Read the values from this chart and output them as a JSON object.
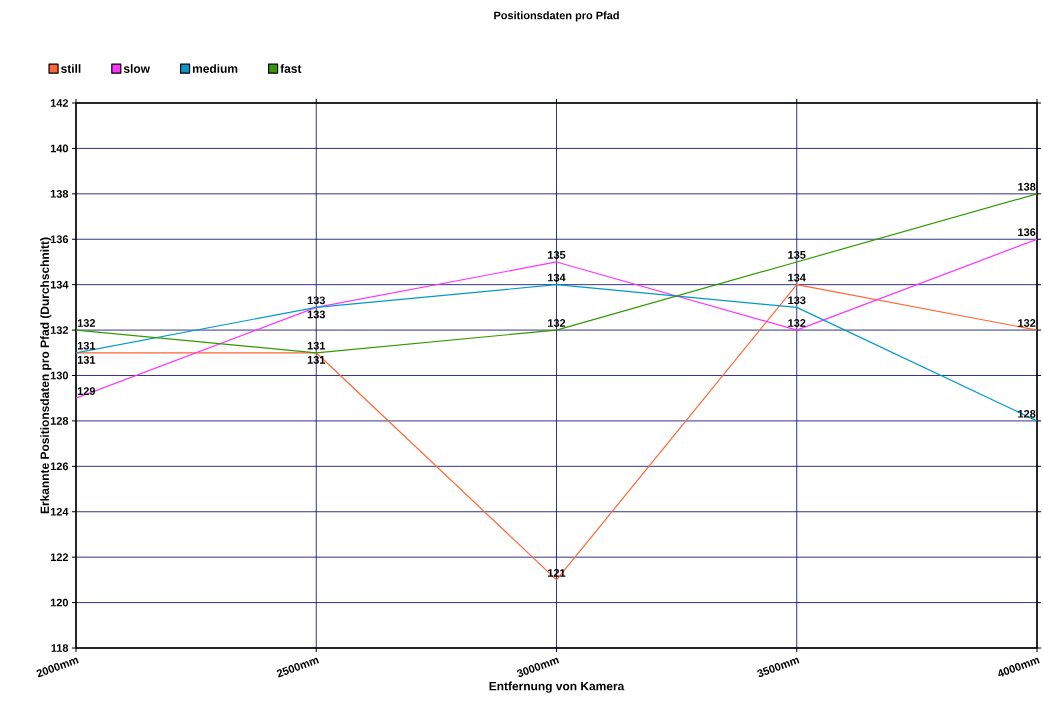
{
  "chart_data": {
    "type": "line",
    "title": "Positionsdaten pro Pfad",
    "xlabel": "Entfernung von Kamera",
    "ylabel": "Erkannte Positionsdaten pro Pfad (Durchschnitt)",
    "categories": [
      "2000mm",
      "2500mm",
      "3000mm",
      "3500mm",
      "4000mm"
    ],
    "series": [
      {
        "name": "still",
        "color": "#ff6633",
        "values": [
          131,
          131,
          121,
          134,
          132
        ]
      },
      {
        "name": "slow",
        "color": "#ff33ff",
        "values": [
          129,
          133,
          135,
          132,
          136
        ]
      },
      {
        "name": "medium",
        "color": "#0099cc",
        "values": [
          131,
          133,
          134,
          133,
          128
        ]
      },
      {
        "name": "fast",
        "color": "#339900",
        "values": [
          132,
          131,
          132,
          135,
          138
        ]
      }
    ],
    "ylim": [
      118,
      142
    ],
    "yticks": [
      118,
      120,
      122,
      124,
      126,
      128,
      130,
      132,
      134,
      136,
      138,
      140,
      142
    ],
    "grid": true,
    "legend": "top left",
    "data_labels": true,
    "marker": "none",
    "line_style": "solid"
  }
}
